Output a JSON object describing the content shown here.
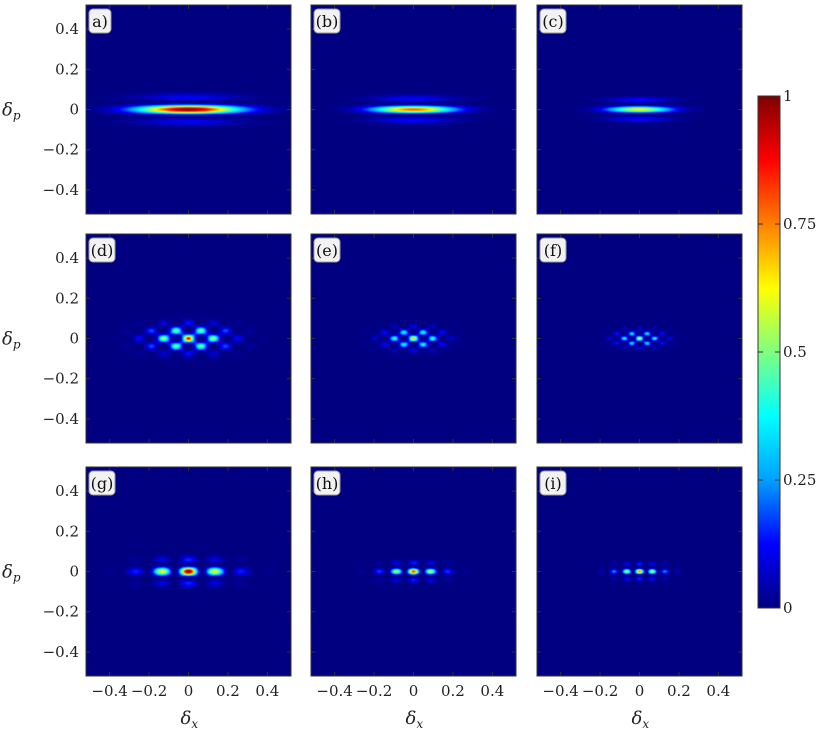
{
  "chart_data": {
    "type": "heatmap",
    "title": "",
    "xlabel": "δ",
    "xlabel_subscript": "x",
    "ylabel": "δ",
    "ylabel_subscript": "p",
    "xlim": [
      -0.52,
      0.52
    ],
    "ylim": [
      -0.52,
      0.52
    ],
    "xticks": [
      -0.4,
      -0.2,
      0,
      0.2,
      0.4
    ],
    "xtick_labels": [
      "−0.4",
      "−0.2",
      "0",
      "0.2",
      "0.4"
    ],
    "yticks": [
      0.4,
      0.2,
      0,
      -0.2,
      -0.4
    ],
    "ytick_labels": [
      "0.4",
      "0.2",
      "0",
      "−0.2",
      "−0.4"
    ],
    "colorbar": {
      "range": [
        0,
        1
      ],
      "ticks": [
        0,
        0.25,
        0.5,
        0.75,
        1
      ],
      "tick_labels": [
        "0",
        "0.25",
        "0.5",
        "0.75",
        "1"
      ],
      "colors": [
        "#000080",
        "#0000ff",
        "#00a0ff",
        "#00ffff",
        "#80ff80",
        "#ffff00",
        "#ff8000",
        "#ff0000",
        "#800000"
      ]
    },
    "panels": [
      {
        "label": "a)",
        "pattern": "fringes",
        "sx": 0.175,
        "sy": 0.032,
        "kx": 0,
        "ky": 85,
        "peak": 1.0
      },
      {
        "label": "(b)",
        "pattern": "fringes",
        "sx": 0.14,
        "sy": 0.03,
        "kx": 0,
        "ky": 100,
        "peak": 0.78
      },
      {
        "label": "(c)",
        "pattern": "fringes",
        "sx": 0.11,
        "sy": 0.028,
        "kx": 0,
        "ky": 115,
        "peak": 0.62
      },
      {
        "label": "(d)",
        "pattern": "lattice",
        "sx": 0.13,
        "sy": 0.042,
        "kx": 49,
        "ky": 75,
        "peak": 0.88
      },
      {
        "label": "(e)",
        "pattern": "lattice",
        "sx": 0.095,
        "sy": 0.032,
        "kx": 63,
        "ky": 95,
        "peak": 0.72
      },
      {
        "label": "(f)",
        "pattern": "lattice",
        "sx": 0.08,
        "sy": 0.026,
        "kx": 80,
        "ky": 120,
        "peak": 0.64
      },
      {
        "label": "(g)",
        "pattern": "grid",
        "sx": 0.14,
        "sy": 0.033,
        "kx": 45,
        "ky": 90,
        "peak": 1.0
      },
      {
        "label": "(h)",
        "pattern": "grid",
        "sx": 0.1,
        "sy": 0.025,
        "kx": 70,
        "ky": 125,
        "peak": 0.82
      },
      {
        "label": "(i)",
        "pattern": "grid",
        "sx": 0.085,
        "sy": 0.022,
        "kx": 95,
        "ky": 150,
        "peak": 0.76
      }
    ]
  }
}
